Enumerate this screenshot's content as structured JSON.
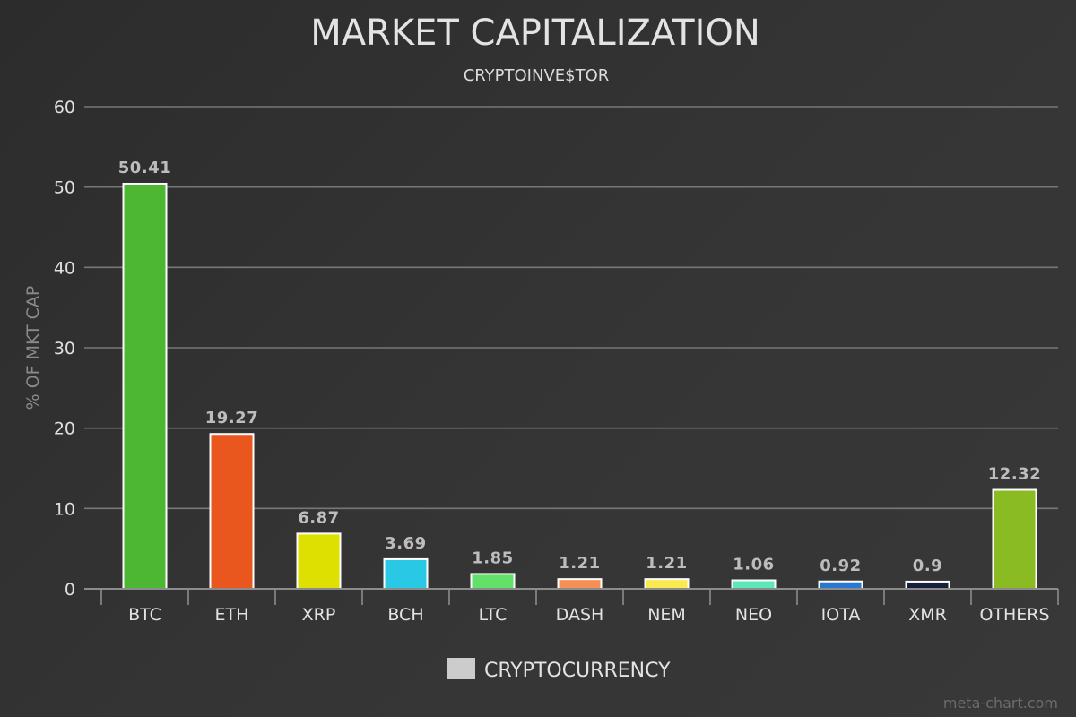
{
  "chart_data": {
    "type": "bar",
    "title": "MARKET CAPITALIZATION",
    "subtitle": "CRYPTOINVE$TOR",
    "xlabel": "",
    "ylabel": "% OF MKT CAP",
    "ylim": [
      0,
      60
    ],
    "yticks": [
      0,
      10,
      20,
      30,
      40,
      50,
      60
    ],
    "grid": true,
    "legend_position": "bottom-center",
    "categories": [
      "BTC",
      "ETH",
      "XRP",
      "BCH",
      "LTC",
      "DASH",
      "NEM",
      "NEO",
      "IOTA",
      "XMR",
      "OTHERS"
    ],
    "series": [
      {
        "name": "CRYPTOCURRENCY",
        "values": [
          50.41,
          19.27,
          6.87,
          3.69,
          1.85,
          1.21,
          1.21,
          1.06,
          0.92,
          0.9,
          12.32
        ],
        "labels": [
          "50.41",
          "19.27",
          "6.87",
          "3.69",
          "1.85",
          "1.21",
          "1.21",
          "1.06",
          "0.92",
          "0.9",
          "12.32"
        ],
        "colors": [
          "#4db733",
          "#ea571e",
          "#dde000",
          "#29c9e6",
          "#63e06a",
          "#f58f53",
          "#f9ea4f",
          "#5de8b9",
          "#2978cf",
          "#17203a",
          "#8abb23"
        ]
      }
    ],
    "legend_swatch_color": "#cccccc"
  },
  "watermark": "meta-chart.com"
}
